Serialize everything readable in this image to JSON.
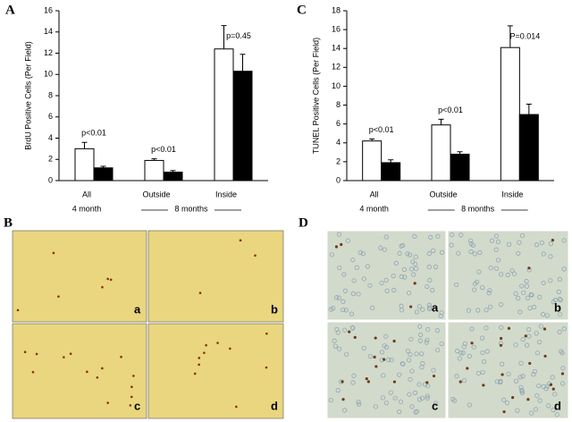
{
  "chart_data": [
    {
      "type": "bar",
      "y_label": "BrdU Positive Cells (Per Field)",
      "categories": [
        "All",
        "Outside",
        "Inside"
      ],
      "group_labels": [
        "4 month",
        "8 months"
      ],
      "series": [
        {
          "color": "#ffffff",
          "values": [
            3.0,
            1.9,
            12.4
          ],
          "errors": [
            0.6,
            0.15,
            2.2
          ]
        },
        {
          "color": "#000000",
          "values": [
            1.2,
            0.8,
            10.3
          ],
          "errors": [
            0.15,
            0.15,
            1.6
          ]
        }
      ],
      "annotations": [
        "p<0.01",
        "p<0.01",
        "p=0.45"
      ],
      "ylim": [
        0,
        16
      ],
      "yticks": [
        0,
        2,
        4,
        6,
        8,
        10,
        12,
        14,
        16
      ]
    },
    {
      "type": "bar",
      "y_label": "TUNEL Positive Cells (Per Field)",
      "categories": [
        "All",
        "Outside",
        "Inside"
      ],
      "group_labels": [
        "4 month",
        "8 months"
      ],
      "series": [
        {
          "color": "#ffffff",
          "values": [
            4.2,
            5.9,
            14.1
          ],
          "errors": [
            0.2,
            0.6,
            2.3
          ]
        },
        {
          "color": "#000000",
          "values": [
            1.9,
            2.8,
            7.0
          ],
          "errors": [
            0.3,
            0.25,
            1.1
          ]
        }
      ],
      "annotations": [
        "p<0.01",
        "p<0.01",
        "P=0.014"
      ],
      "ylim": [
        0,
        18
      ],
      "yticks": [
        0,
        2,
        4,
        6,
        8,
        10,
        12,
        14,
        16,
        18
      ]
    }
  ],
  "figure": {
    "panel_labels": [
      "A",
      "B",
      "C",
      "D"
    ],
    "micrograph_labels": [
      "a",
      "b",
      "c",
      "d"
    ]
  }
}
